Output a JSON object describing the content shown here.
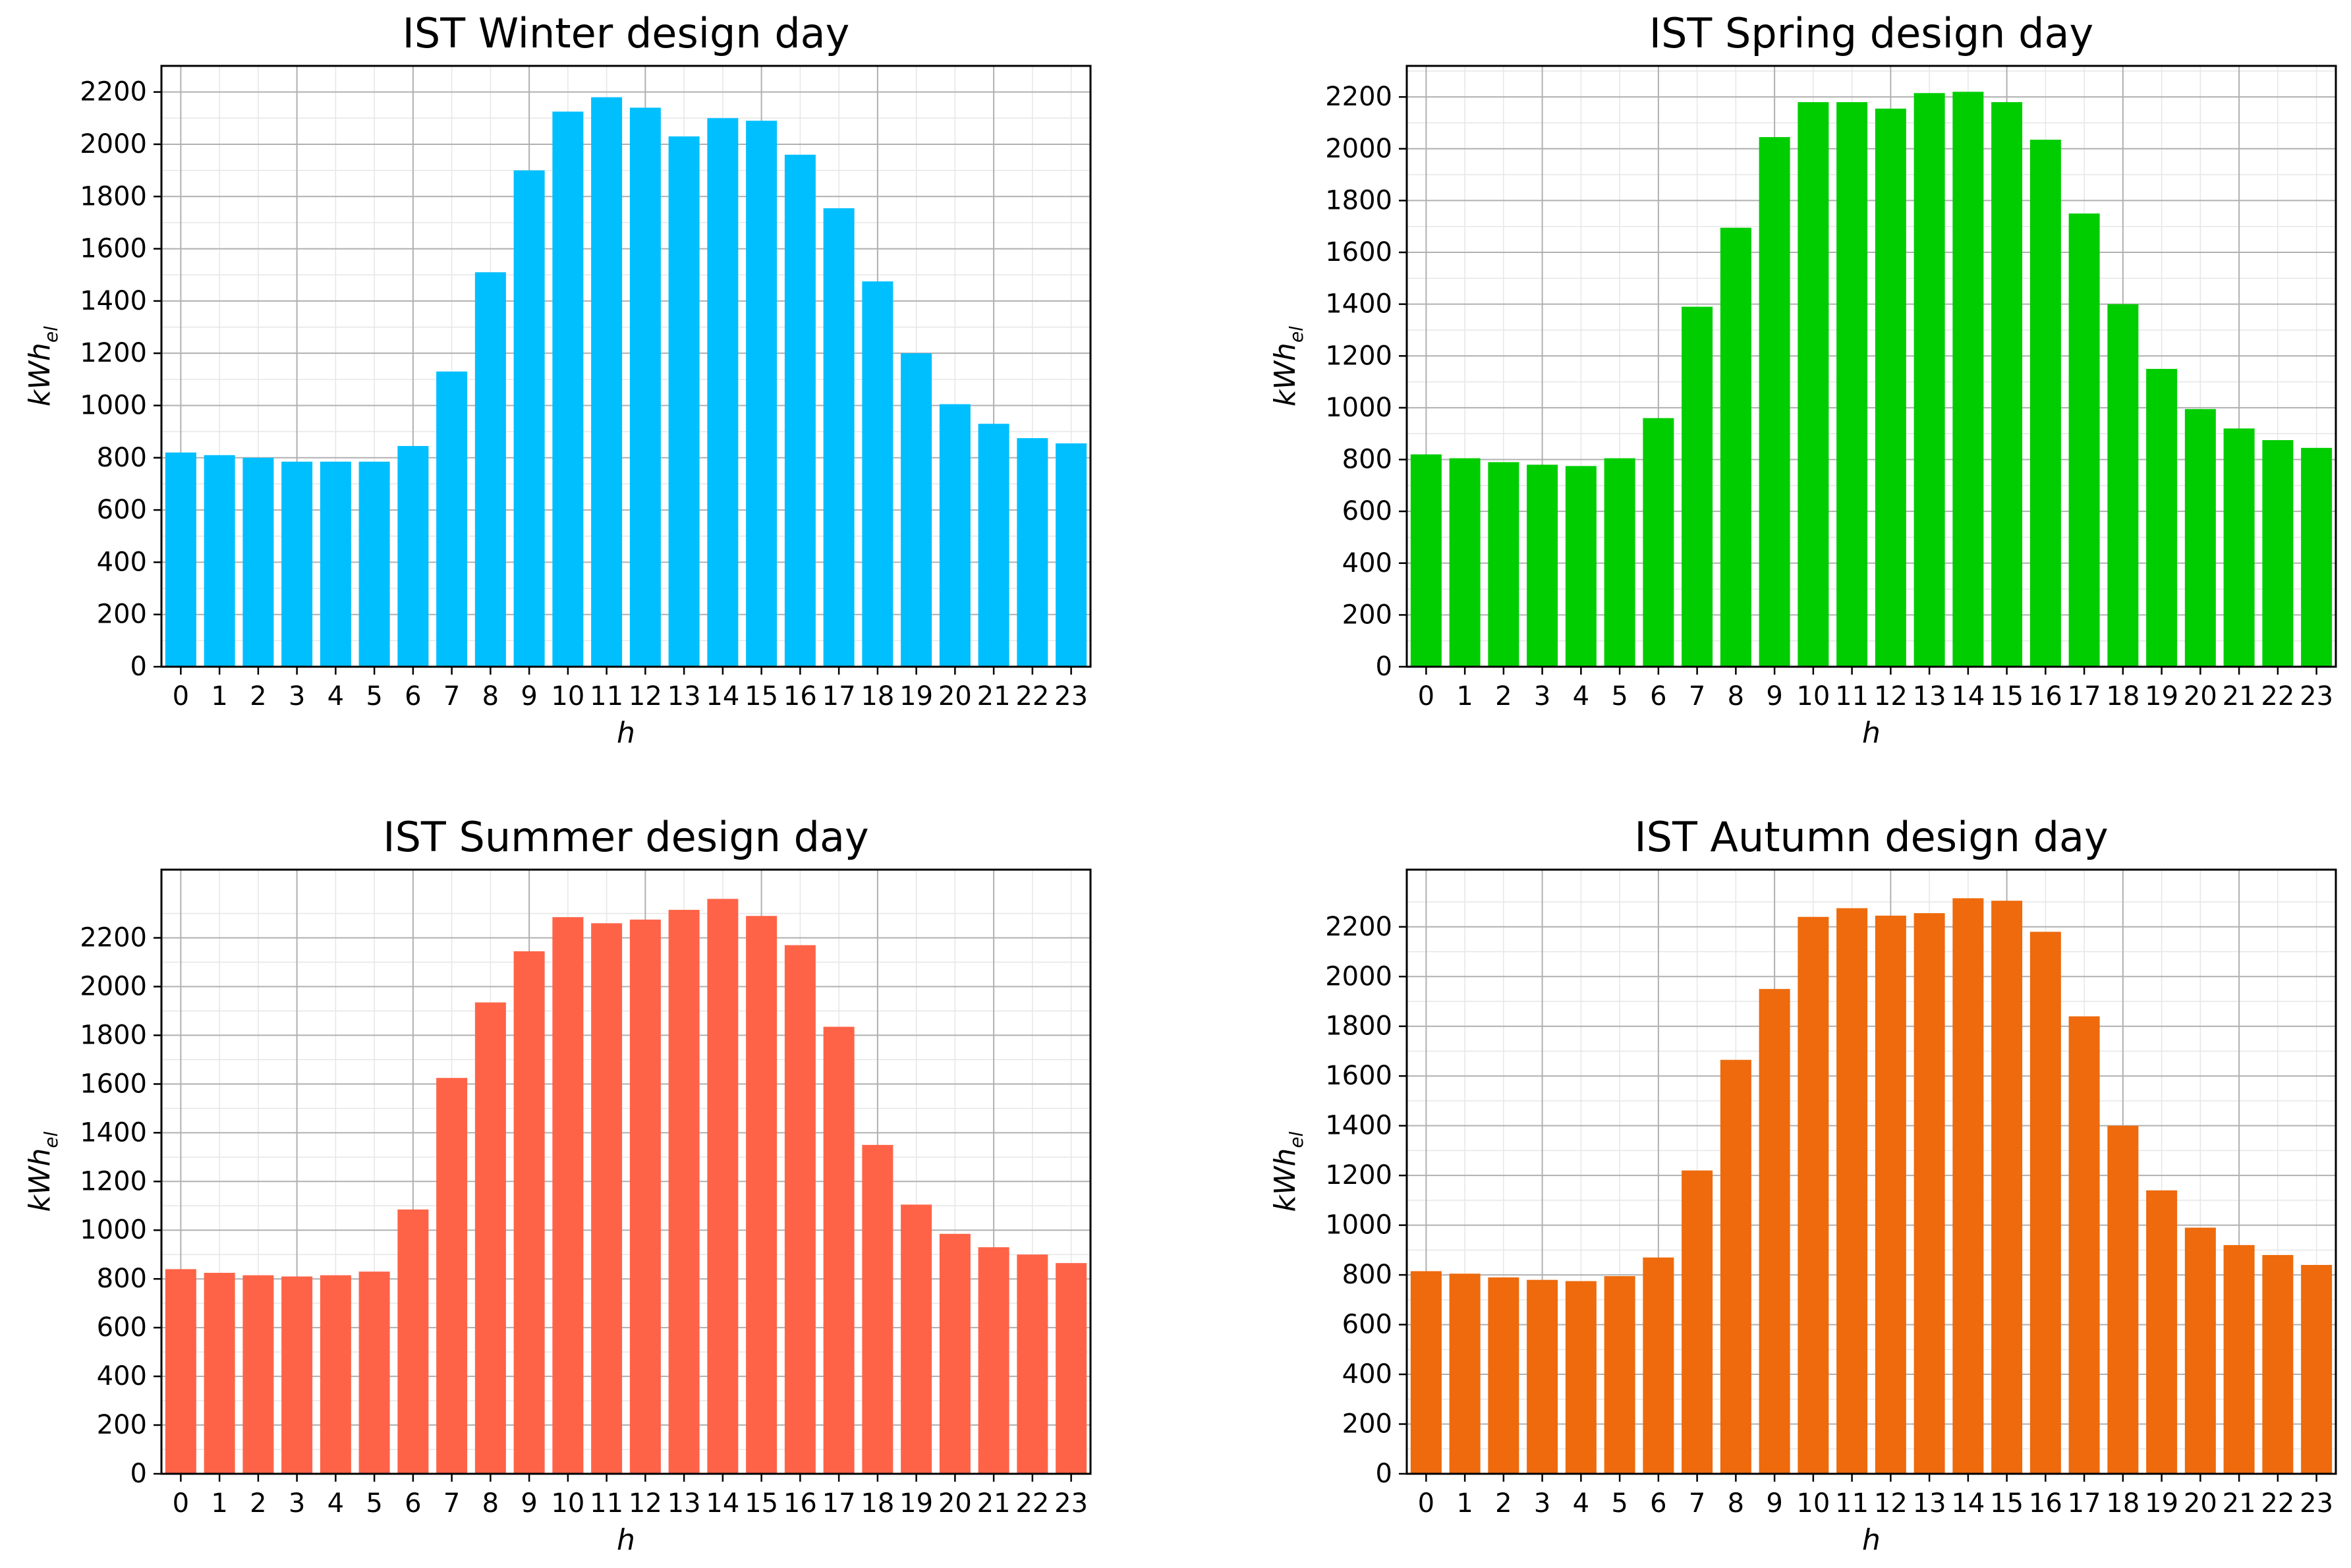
{
  "chart_data": [
    {
      "type": "bar",
      "title": "IST Winter design day",
      "xlabel": "h",
      "ylabel": "kWh",
      "ylabel_sub": "el",
      "color": "#00bfff",
      "categories": [
        "0",
        "1",
        "2",
        "3",
        "4",
        "5",
        "6",
        "7",
        "8",
        "9",
        "10",
        "11",
        "12",
        "13",
        "14",
        "15",
        "16",
        "17",
        "18",
        "19",
        "20",
        "21",
        "22",
        "23"
      ],
      "values": [
        820,
        810,
        800,
        785,
        785,
        785,
        845,
        1130,
        1510,
        1900,
        2125,
        2180,
        2140,
        2030,
        2100,
        2090,
        1960,
        1755,
        1475,
        1200,
        1005,
        930,
        875,
        855
      ],
      "ylim": [
        0,
        2300
      ],
      "yticks": [
        0,
        200,
        400,
        600,
        800,
        1000,
        1200,
        1400,
        1600,
        1800,
        2000,
        2200
      ],
      "ytick_labels": [
        "0",
        "200",
        "400",
        "600",
        "800",
        "1000",
        "1200",
        "1400",
        "1600",
        "1800",
        "2000",
        "2200"
      ]
    },
    {
      "type": "bar",
      "title": "IST Spring design day",
      "xlabel": "h",
      "ylabel": "kWh",
      "ylabel_sub": "el",
      "color": "#00cd00",
      "categories": [
        "0",
        "1",
        "2",
        "3",
        "4",
        "5",
        "6",
        "7",
        "8",
        "9",
        "10",
        "11",
        "12",
        "13",
        "14",
        "15",
        "16",
        "17",
        "18",
        "19",
        "20",
        "21",
        "22",
        "23"
      ],
      "values": [
        820,
        805,
        790,
        780,
        775,
        805,
        960,
        1390,
        1695,
        2045,
        2180,
        2180,
        2155,
        2215,
        2220,
        2180,
        2035,
        1750,
        1400,
        1150,
        995,
        920,
        875,
        845
      ],
      "ylim": [
        0,
        2320
      ],
      "yticks": [
        0,
        200,
        400,
        600,
        800,
        1000,
        1200,
        1400,
        1600,
        1800,
        2000,
        2200
      ],
      "ytick_labels": [
        "0",
        "200",
        "400",
        "600",
        "800",
        "1000",
        "1200",
        "1400",
        "1600",
        "1800",
        "2000",
        "2200"
      ]
    },
    {
      "type": "bar",
      "title": "IST Summer design day",
      "xlabel": "h",
      "ylabel": "kWh",
      "ylabel_sub": "el",
      "color": "#ff6347",
      "categories": [
        "0",
        "1",
        "2",
        "3",
        "4",
        "5",
        "6",
        "7",
        "8",
        "9",
        "10",
        "11",
        "12",
        "13",
        "14",
        "15",
        "16",
        "17",
        "18",
        "19",
        "20",
        "21",
        "22",
        "23"
      ],
      "values": [
        840,
        825,
        815,
        810,
        815,
        830,
        1085,
        1625,
        1935,
        2145,
        2285,
        2260,
        2275,
        2315,
        2360,
        2290,
        2170,
        1835,
        1350,
        1105,
        985,
        930,
        900,
        865
      ],
      "ylim": [
        0,
        2480
      ],
      "yticks": [
        0,
        200,
        400,
        600,
        800,
        1000,
        1200,
        1400,
        1600,
        1800,
        2000,
        2200
      ],
      "ytick_labels": [
        "0",
        "200",
        "400",
        "600",
        "800",
        "1000",
        "1200",
        "1400",
        "1600",
        "1800",
        "2000",
        "2200"
      ]
    },
    {
      "type": "bar",
      "title": "IST Autumn design day",
      "xlabel": "h",
      "ylabel": "kWh",
      "ylabel_sub": "el",
      "color": "#ee6a0c",
      "categories": [
        "0",
        "1",
        "2",
        "3",
        "4",
        "5",
        "6",
        "7",
        "8",
        "9",
        "10",
        "11",
        "12",
        "13",
        "14",
        "15",
        "16",
        "17",
        "18",
        "19",
        "20",
        "21",
        "22",
        "23"
      ],
      "values": [
        815,
        805,
        790,
        780,
        775,
        795,
        870,
        1220,
        1665,
        1950,
        2240,
        2275,
        2245,
        2255,
        2315,
        2305,
        2180,
        1840,
        1400,
        1140,
        990,
        920,
        880,
        840
      ],
      "ylim": [
        0,
        2430
      ],
      "yticks": [
        0,
        200,
        400,
        600,
        800,
        1000,
        1200,
        1400,
        1600,
        1800,
        2000,
        2200
      ],
      "ytick_labels": [
        "0",
        "200",
        "400",
        "600",
        "800",
        "1000",
        "1200",
        "1400",
        "1600",
        "1800",
        "2000",
        "2200"
      ]
    }
  ]
}
